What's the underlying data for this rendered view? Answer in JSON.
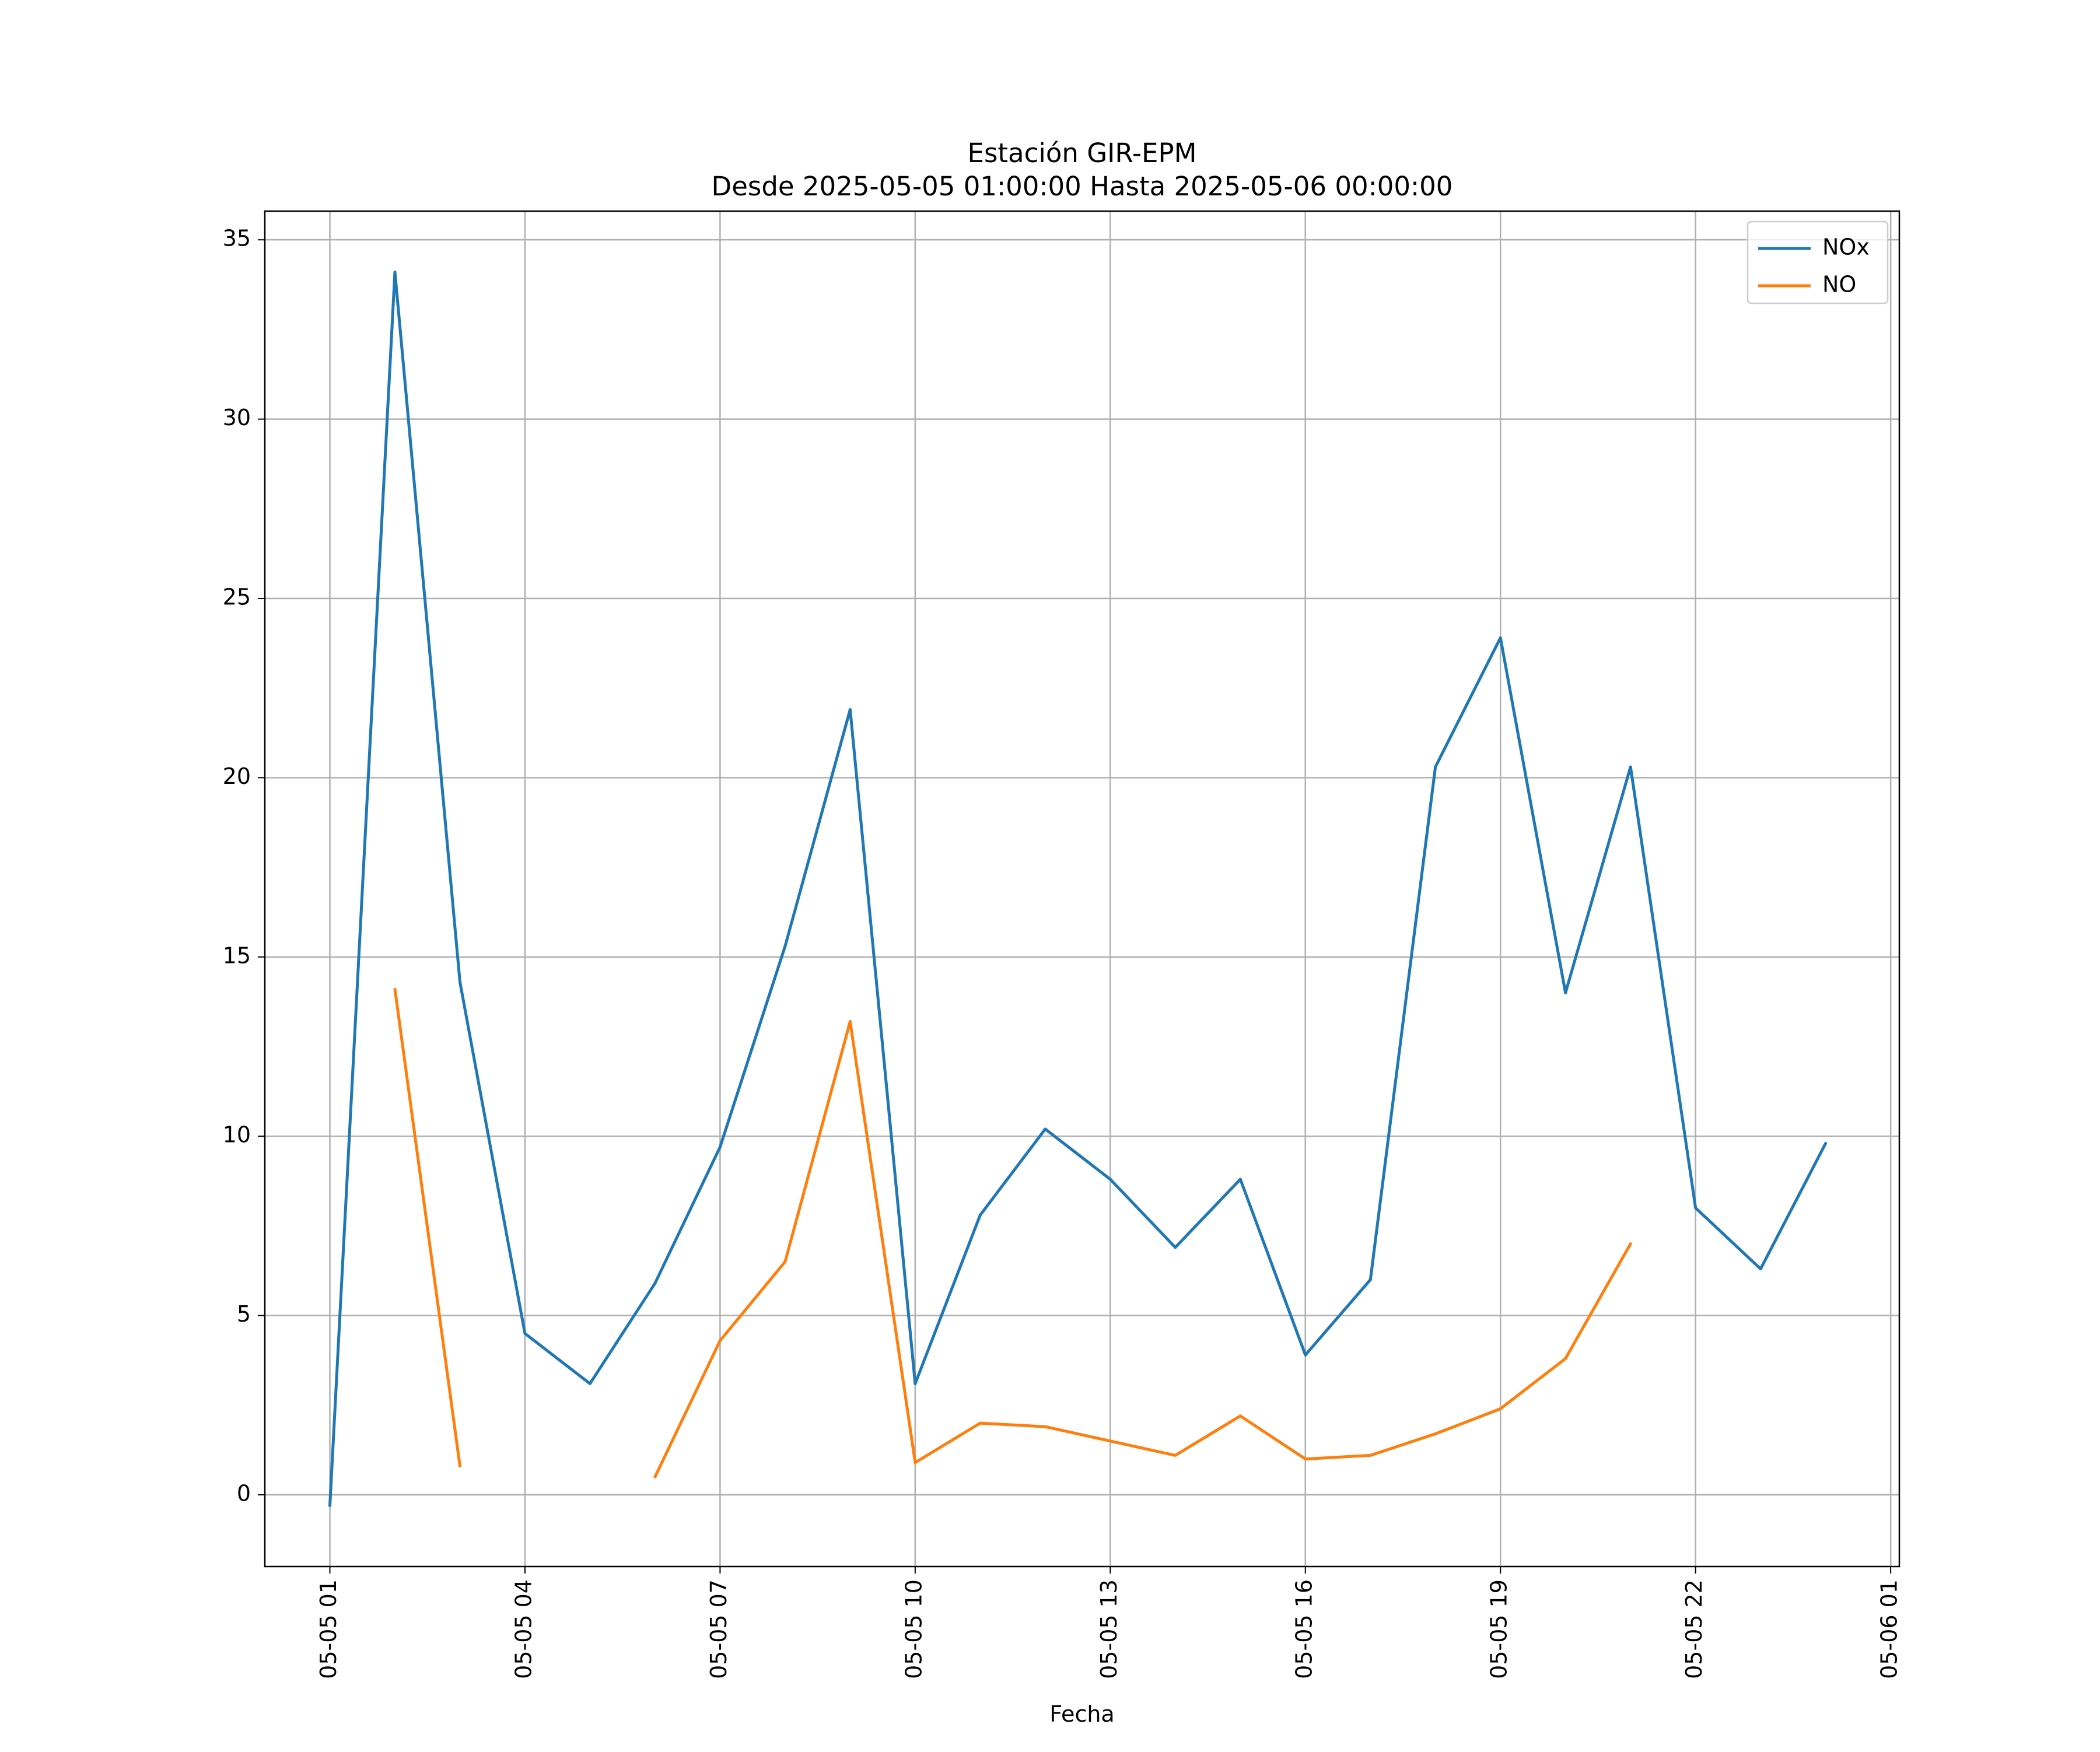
{
  "chart_data": {
    "type": "line",
    "title": "Estación GIR-EPM",
    "subtitle": "Desde 2025-05-05 01:00:00 Hasta 2025-05-06 00:00:00",
    "xlabel": "Fecha",
    "ylabel": "",
    "x_ticks": [
      "05-05 01",
      "05-05 04",
      "05-05 07",
      "05-05 10",
      "05-05 13",
      "05-05 16",
      "05-05 19",
      "05-05 22",
      "05-06 01"
    ],
    "y_ticks": [
      "0",
      "5",
      "10",
      "15",
      "20",
      "25",
      "30",
      "35"
    ],
    "ylim": [
      -2,
      35.8
    ],
    "xlim": [
      "2025-05-05 00:00",
      "2025-05-06 01:08"
    ],
    "grid": true,
    "legend_position": "top-right",
    "x": [
      "2025-05-05 01:00",
      "2025-05-05 02:00",
      "2025-05-05 03:00",
      "2025-05-05 04:00",
      "2025-05-05 05:00",
      "2025-05-05 06:00",
      "2025-05-05 07:00",
      "2025-05-05 08:00",
      "2025-05-05 09:00",
      "2025-05-05 10:00",
      "2025-05-05 11:00",
      "2025-05-05 12:00",
      "2025-05-05 13:00",
      "2025-05-05 14:00",
      "2025-05-05 15:00",
      "2025-05-05 16:00",
      "2025-05-05 17:00",
      "2025-05-05 18:00",
      "2025-05-05 19:00",
      "2025-05-05 20:00",
      "2025-05-05 21:00",
      "2025-05-05 22:00",
      "2025-05-05 23:00",
      "2025-05-06 00:00"
    ],
    "series": [
      {
        "name": "NOx",
        "color": "#1f77b4",
        "values": [
          -0.3,
          34.1,
          14.3,
          4.5,
          3.1,
          5.9,
          9.7,
          15.3,
          21.9,
          3.1,
          7.8,
          10.2,
          8.8,
          6.9,
          8.8,
          3.9,
          6.0,
          20.3,
          23.9,
          14.0,
          20.3,
          8.0,
          6.3,
          9.8
        ]
      },
      {
        "name": "NO",
        "color": "#ff7f0e",
        "values": [
          null,
          14.1,
          0.8,
          null,
          null,
          0.5,
          4.3,
          6.5,
          13.2,
          0.9,
          2.0,
          1.9,
          1.5,
          1.1,
          2.2,
          1.0,
          1.1,
          1.7,
          2.4,
          3.8,
          7.0,
          null,
          null,
          null
        ]
      }
    ]
  }
}
